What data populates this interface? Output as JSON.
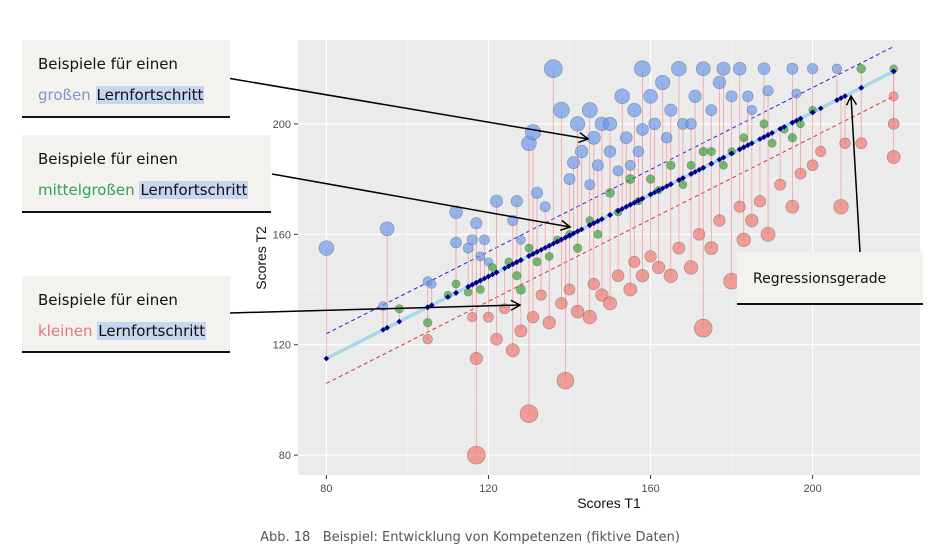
{
  "chart_data": {
    "type": "scatter",
    "xlabel": "Scores T1",
    "ylabel": "Scores T2",
    "xlim": [
      73,
      226.5
    ],
    "ylim": [
      72.8,
      230.4
    ],
    "xticks": [
      80,
      120,
      160,
      200
    ],
    "yticks": [
      80,
      120,
      160,
      200
    ],
    "grid": true,
    "regression": {
      "intercept_at_80": 115,
      "slope": 0.743,
      "band": 9
    },
    "colors": {
      "large": "#6495ED",
      "medium": "#2CA02C",
      "small": "#F07167",
      "predicted": "#00008B",
      "regression": "#A8D8E8",
      "upper_dash": "#2222DD",
      "lower_dash": "#E03030",
      "residual_line": "#F4A0A0"
    },
    "points": [
      [
        80,
        155,
        "large"
      ],
      [
        95,
        162,
        "large"
      ],
      [
        94,
        134,
        "large"
      ],
      [
        105,
        143,
        "large"
      ],
      [
        106,
        142,
        "large"
      ],
      [
        112,
        168,
        "large"
      ],
      [
        112,
        157,
        "large"
      ],
      [
        115,
        155,
        "large"
      ],
      [
        116,
        158,
        "large"
      ],
      [
        117,
        164,
        "large"
      ],
      [
        118,
        152,
        "large"
      ],
      [
        119,
        158,
        "large"
      ],
      [
        120,
        150,
        "large"
      ],
      [
        122,
        172,
        "large"
      ],
      [
        126,
        165,
        "large"
      ],
      [
        127,
        172,
        "large"
      ],
      [
        128,
        158,
        "large"
      ],
      [
        130,
        193,
        "large"
      ],
      [
        131,
        197,
        "large"
      ],
      [
        132,
        175,
        "large"
      ],
      [
        134,
        170,
        "large"
      ],
      [
        136,
        220,
        "large"
      ],
      [
        138,
        205,
        "large"
      ],
      [
        140,
        180,
        "large"
      ],
      [
        141,
        186,
        "large"
      ],
      [
        142,
        200,
        "large"
      ],
      [
        143,
        190,
        "large"
      ],
      [
        145,
        205,
        "large"
      ],
      [
        145,
        178,
        "large"
      ],
      [
        146,
        195,
        "large"
      ],
      [
        147,
        185,
        "large"
      ],
      [
        148,
        200,
        "large"
      ],
      [
        150,
        190,
        "large"
      ],
      [
        150,
        200,
        "large"
      ],
      [
        152,
        183,
        "large"
      ],
      [
        153,
        210,
        "large"
      ],
      [
        154,
        195,
        "large"
      ],
      [
        155,
        185,
        "large"
      ],
      [
        156,
        205,
        "large"
      ],
      [
        157,
        190,
        "large"
      ],
      [
        158,
        220,
        "large"
      ],
      [
        158,
        198,
        "large"
      ],
      [
        160,
        210,
        "large"
      ],
      [
        161,
        200,
        "large"
      ],
      [
        163,
        215,
        "large"
      ],
      [
        164,
        195,
        "large"
      ],
      [
        165,
        205,
        "large"
      ],
      [
        167,
        220,
        "large"
      ],
      [
        168,
        200,
        "large"
      ],
      [
        170,
        200,
        "large"
      ],
      [
        171,
        210,
        "large"
      ],
      [
        173,
        220,
        "large"
      ],
      [
        175,
        205,
        "large"
      ],
      [
        177,
        215,
        "large"
      ],
      [
        178,
        220,
        "large"
      ],
      [
        180,
        210,
        "large"
      ],
      [
        182,
        220,
        "large"
      ],
      [
        184,
        210,
        "large"
      ],
      [
        185,
        205,
        "large"
      ],
      [
        188,
        220,
        "large"
      ],
      [
        189,
        212,
        "large"
      ],
      [
        195,
        220,
        "large"
      ],
      [
        196,
        211,
        "large"
      ],
      [
        200,
        220,
        "large"
      ],
      [
        206,
        220,
        "large"
      ],
      [
        98,
        133,
        "medium"
      ],
      [
        105,
        128,
        "medium"
      ],
      [
        110,
        138,
        "medium"
      ],
      [
        112,
        142,
        "medium"
      ],
      [
        115,
        139,
        "medium"
      ],
      [
        118,
        140,
        "medium"
      ],
      [
        121,
        148,
        "medium"
      ],
      [
        125,
        150,
        "medium"
      ],
      [
        127,
        145,
        "medium"
      ],
      [
        128,
        140,
        "medium"
      ],
      [
        130,
        155,
        "medium"
      ],
      [
        132,
        150,
        "medium"
      ],
      [
        135,
        152,
        "medium"
      ],
      [
        137,
        158,
        "medium"
      ],
      [
        140,
        160,
        "medium"
      ],
      [
        142,
        155,
        "medium"
      ],
      [
        145,
        165,
        "medium"
      ],
      [
        147,
        160,
        "medium"
      ],
      [
        150,
        175,
        "medium"
      ],
      [
        152,
        168,
        "medium"
      ],
      [
        155,
        180,
        "medium"
      ],
      [
        157,
        172,
        "medium"
      ],
      [
        160,
        180,
        "medium"
      ],
      [
        162,
        176,
        "medium"
      ],
      [
        165,
        185,
        "medium"
      ],
      [
        168,
        178,
        "medium"
      ],
      [
        170,
        185,
        "medium"
      ],
      [
        173,
        190,
        "medium"
      ],
      [
        175,
        190,
        "medium"
      ],
      [
        178,
        185,
        "medium"
      ],
      [
        180,
        190,
        "medium"
      ],
      [
        183,
        195,
        "medium"
      ],
      [
        188,
        200,
        "medium"
      ],
      [
        190,
        193,
        "medium"
      ],
      [
        193,
        198,
        "medium"
      ],
      [
        195,
        195,
        "medium"
      ],
      [
        197,
        200,
        "medium"
      ],
      [
        200,
        205,
        "medium"
      ],
      [
        212,
        220,
        "medium"
      ],
      [
        220,
        220,
        "medium"
      ],
      [
        105,
        122,
        "small"
      ],
      [
        116,
        130,
        "small"
      ],
      [
        117,
        115,
        "small"
      ],
      [
        117,
        80,
        "small"
      ],
      [
        120,
        130,
        "small"
      ],
      [
        122,
        122,
        "small"
      ],
      [
        124,
        133,
        "small"
      ],
      [
        126,
        118,
        "small"
      ],
      [
        128,
        125,
        "small"
      ],
      [
        130,
        95,
        "small"
      ],
      [
        131,
        130,
        "small"
      ],
      [
        133,
        138,
        "small"
      ],
      [
        135,
        128,
        "small"
      ],
      [
        138,
        135,
        "small"
      ],
      [
        139,
        107,
        "small"
      ],
      [
        140,
        140,
        "small"
      ],
      [
        142,
        132,
        "small"
      ],
      [
        145,
        130,
        "small"
      ],
      [
        146,
        142,
        "small"
      ],
      [
        148,
        138,
        "small"
      ],
      [
        150,
        135,
        "small"
      ],
      [
        152,
        145,
        "small"
      ],
      [
        155,
        140,
        "small"
      ],
      [
        156,
        150,
        "small"
      ],
      [
        158,
        145,
        "small"
      ],
      [
        160,
        152,
        "small"
      ],
      [
        162,
        148,
        "small"
      ],
      [
        165,
        145,
        "small"
      ],
      [
        167,
        155,
        "small"
      ],
      [
        170,
        148,
        "small"
      ],
      [
        172,
        160,
        "small"
      ],
      [
        173,
        126,
        "small"
      ],
      [
        175,
        155,
        "small"
      ],
      [
        177,
        165,
        "small"
      ],
      [
        180,
        143,
        "small"
      ],
      [
        182,
        170,
        "small"
      ],
      [
        183,
        158,
        "small"
      ],
      [
        185,
        165,
        "small"
      ],
      [
        187,
        172,
        "small"
      ],
      [
        189,
        160,
        "small"
      ],
      [
        192,
        178,
        "small"
      ],
      [
        195,
        170,
        "small"
      ],
      [
        197,
        182,
        "small"
      ],
      [
        200,
        185,
        "small"
      ],
      [
        202,
        190,
        "small"
      ],
      [
        207,
        170,
        "small"
      ],
      [
        208,
        193,
        "small"
      ],
      [
        212,
        193,
        "small"
      ],
      [
        220,
        200,
        "small"
      ],
      [
        220,
        188,
        "small"
      ],
      [
        220,
        210,
        "small"
      ]
    ]
  },
  "annotations": {
    "large": {
      "line1": "Beispiele für einen",
      "word": "großen",
      "highlight": "Lernfortschritt",
      "color": "#7d96c8"
    },
    "medium": {
      "line1": "Beispiele für einen",
      "word": "mittelgroßen",
      "highlight": "Lernfortschritt",
      "color": "#2ea44f"
    },
    "small": {
      "line1": "Beispiele für einen",
      "word": "kleinen",
      "highlight": "Lernfortschritt",
      "color": "#e8747c"
    },
    "regression": "Regressionsgerade"
  },
  "caption": {
    "label": "Abb. 18",
    "text": "Beispiel: Entwicklung von Kompetenzen (fiktive Daten)"
  }
}
